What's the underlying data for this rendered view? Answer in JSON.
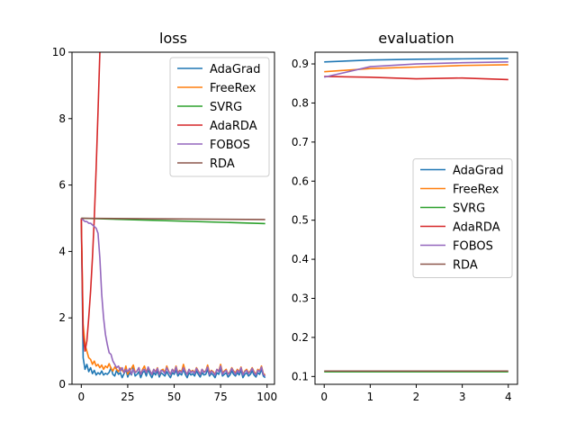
{
  "chart_data": [
    {
      "type": "line",
      "title": "loss",
      "xlabel": "",
      "ylabel": "",
      "xlim": [
        -5,
        104
      ],
      "ylim": [
        0,
        10
      ],
      "xticks": [
        0,
        25,
        50,
        75,
        100
      ],
      "yticks": [
        0,
        2,
        4,
        6,
        8,
        10
      ],
      "xtick_labels": [
        "0",
        "25",
        "50",
        "75",
        "100"
      ],
      "ytick_labels": [
        "0",
        "2",
        "4",
        "6",
        "8",
        "10"
      ],
      "legend": "top-right",
      "grid": false,
      "series": [
        {
          "name": "AdaGrad",
          "color": "#1f77b4",
          "x": [
            0,
            1,
            2,
            3,
            4,
            5,
            6,
            7,
            8,
            9,
            10,
            11,
            12,
            13,
            14,
            15,
            16,
            17,
            18,
            19,
            20,
            21,
            22,
            23,
            24,
            25,
            26,
            27,
            28,
            29,
            30,
            31,
            32,
            33,
            34,
            35,
            36,
            37,
            38,
            39,
            40,
            41,
            42,
            43,
            44,
            45,
            46,
            47,
            48,
            49,
            50,
            51,
            52,
            53,
            54,
            55,
            56,
            57,
            58,
            59,
            60,
            61,
            62,
            63,
            64,
            65,
            66,
            67,
            68,
            69,
            70,
            71,
            72,
            73,
            74,
            75,
            76,
            77,
            78,
            79,
            80,
            81,
            82,
            83,
            84,
            85,
            86,
            87,
            88,
            89,
            90,
            91,
            92,
            93,
            94,
            95,
            96,
            97,
            98,
            99
          ],
          "y": [
            5.0,
            0.8,
            0.45,
            0.6,
            0.38,
            0.5,
            0.32,
            0.42,
            0.28,
            0.35,
            0.3,
            0.4,
            0.28,
            0.33,
            0.3,
            0.36,
            0.5,
            0.3,
            0.25,
            0.42,
            0.3,
            0.35,
            0.2,
            0.32,
            0.45,
            0.22,
            0.35,
            0.28,
            0.5,
            0.25,
            0.3,
            0.38,
            0.2,
            0.35,
            0.4,
            0.25,
            0.45,
            0.3,
            0.2,
            0.35,
            0.28,
            0.4,
            0.22,
            0.35,
            0.3,
            0.25,
            0.38,
            0.28,
            0.2,
            0.35,
            0.3,
            0.42,
            0.25,
            0.33,
            0.28,
            0.45,
            0.3,
            0.2,
            0.35,
            0.28,
            0.32,
            0.25,
            0.4,
            0.3,
            0.22,
            0.35,
            0.28,
            0.3,
            0.45,
            0.25,
            0.33,
            0.28,
            0.2,
            0.35,
            0.3,
            0.48,
            0.25,
            0.3,
            0.35,
            0.22,
            0.28,
            0.4,
            0.3,
            0.25,
            0.35,
            0.28,
            0.42,
            0.2,
            0.3,
            0.35,
            0.25,
            0.3,
            0.4,
            0.28,
            0.22,
            0.35,
            0.3,
            0.45,
            0.25,
            0.2
          ]
        },
        {
          "name": "FreeRex",
          "color": "#ff7f0e",
          "x": [
            0,
            1,
            2,
            3,
            4,
            5,
            6,
            7,
            8,
            9,
            10,
            11,
            12,
            13,
            14,
            15,
            16,
            17,
            18,
            19,
            20,
            21,
            22,
            23,
            24,
            25,
            26,
            27,
            28,
            29,
            30,
            31,
            32,
            33,
            34,
            35,
            36,
            37,
            38,
            39,
            40,
            41,
            42,
            43,
            44,
            45,
            46,
            47,
            48,
            49,
            50,
            51,
            52,
            53,
            54,
            55,
            56,
            57,
            58,
            59,
            60,
            61,
            62,
            63,
            64,
            65,
            66,
            67,
            68,
            69,
            70,
            71,
            72,
            73,
            74,
            75,
            76,
            77,
            78,
            79,
            80,
            81,
            82,
            83,
            84,
            85,
            86,
            87,
            88,
            89,
            90,
            91,
            92,
            93,
            94,
            95,
            96,
            97,
            98,
            99
          ],
          "y": [
            5.0,
            1.8,
            1.2,
            1.0,
            0.8,
            0.75,
            0.6,
            0.7,
            0.55,
            0.6,
            0.5,
            0.58,
            0.45,
            0.55,
            0.5,
            0.62,
            0.48,
            0.4,
            0.52,
            0.45,
            0.38,
            0.5,
            0.42,
            0.35,
            0.55,
            0.3,
            0.4,
            0.48,
            0.58,
            0.35,
            0.4,
            0.5,
            0.3,
            0.45,
            0.55,
            0.35,
            0.5,
            0.4,
            0.3,
            0.45,
            0.38,
            0.5,
            0.3,
            0.42,
            0.45,
            0.35,
            0.55,
            0.4,
            0.3,
            0.45,
            0.38,
            0.55,
            0.35,
            0.42,
            0.38,
            0.6,
            0.4,
            0.3,
            0.45,
            0.38,
            0.42,
            0.35,
            0.5,
            0.4,
            0.3,
            0.45,
            0.38,
            0.4,
            0.58,
            0.35,
            0.42,
            0.38,
            0.3,
            0.45,
            0.4,
            0.6,
            0.35,
            0.4,
            0.45,
            0.3,
            0.38,
            0.5,
            0.4,
            0.35,
            0.45,
            0.38,
            0.52,
            0.3,
            0.4,
            0.45,
            0.35,
            0.4,
            0.5,
            0.38,
            0.3,
            0.45,
            0.4,
            0.55,
            0.32,
            0.28
          ]
        },
        {
          "name": "SVRG",
          "color": "#2ca02c",
          "x": [
            0,
            99
          ],
          "y": [
            5.0,
            4.84
          ]
        },
        {
          "name": "AdaRDA",
          "color": "#d62728",
          "x": [
            0,
            1,
            2,
            3,
            4,
            5,
            6,
            7,
            8,
            9,
            10,
            11
          ],
          "y": [
            5.0,
            1.5,
            1.0,
            1.3,
            2.0,
            2.8,
            3.8,
            5.0,
            6.5,
            8.2,
            10.0,
            12.0
          ]
        },
        {
          "name": "FOBOS",
          "color": "#9467bd",
          "x": [
            0,
            1,
            2,
            3,
            4,
            5,
            6,
            7,
            8,
            9,
            10,
            11,
            12,
            13,
            14,
            15,
            16,
            17,
            18,
            19,
            20,
            21,
            22,
            23,
            24,
            25,
            26,
            27,
            28,
            29,
            30,
            31,
            32,
            33,
            34,
            35,
            36,
            37,
            38,
            39,
            40,
            41,
            42,
            43,
            44,
            45,
            46,
            47,
            48,
            49,
            50,
            51,
            52,
            53,
            54,
            55,
            56,
            57,
            58,
            59,
            60,
            61,
            62,
            63,
            64,
            65,
            66,
            67,
            68,
            69,
            70,
            71,
            72,
            73,
            74,
            75,
            76,
            77,
            78,
            79,
            80,
            81,
            82,
            83,
            84,
            85,
            86,
            87,
            88,
            89,
            90,
            91,
            92,
            93,
            94,
            95,
            96,
            97,
            98,
            99
          ],
          "y": [
            5.0,
            4.95,
            4.9,
            4.9,
            4.85,
            4.85,
            4.8,
            4.75,
            4.7,
            4.55,
            3.8,
            2.7,
            2.0,
            1.5,
            1.2,
            0.95,
            0.9,
            0.7,
            0.6,
            0.5,
            0.55,
            0.4,
            0.5,
            0.35,
            0.45,
            0.38,
            0.48,
            0.3,
            0.45,
            0.35,
            0.4,
            0.5,
            0.3,
            0.42,
            0.45,
            0.35,
            0.52,
            0.4,
            0.3,
            0.45,
            0.35,
            0.48,
            0.3,
            0.42,
            0.4,
            0.32,
            0.5,
            0.38,
            0.3,
            0.45,
            0.35,
            0.52,
            0.32,
            0.4,
            0.35,
            0.5,
            0.38,
            0.3,
            0.45,
            0.35,
            0.4,
            0.32,
            0.48,
            0.38,
            0.3,
            0.45,
            0.35,
            0.4,
            0.52,
            0.3,
            0.4,
            0.35,
            0.28,
            0.45,
            0.38,
            0.55,
            0.3,
            0.38,
            0.42,
            0.3,
            0.35,
            0.48,
            0.38,
            0.3,
            0.42,
            0.35,
            0.5,
            0.28,
            0.38,
            0.42,
            0.32,
            0.38,
            0.48,
            0.35,
            0.28,
            0.42,
            0.38,
            0.52,
            0.3,
            0.25
          ]
        },
        {
          "name": "RDA",
          "color": "#8c564b",
          "x": [
            0,
            99
          ],
          "y": [
            5.0,
            4.96
          ]
        }
      ]
    },
    {
      "type": "line",
      "title": "evaluation",
      "xlabel": "",
      "ylabel": "",
      "xlim": [
        -0.2,
        4.2
      ],
      "ylim": [
        0.08,
        0.93
      ],
      "xticks": [
        0,
        1,
        2,
        3,
        4
      ],
      "yticks": [
        0.1,
        0.2,
        0.3,
        0.4,
        0.5,
        0.6,
        0.7,
        0.8,
        0.9
      ],
      "xtick_labels": [
        "0",
        "1",
        "2",
        "3",
        "4"
      ],
      "ytick_labels": [
        "0.1",
        "0.2",
        "0.3",
        "0.4",
        "0.5",
        "0.6",
        "0.7",
        "0.8",
        "0.9"
      ],
      "legend": "center-right",
      "grid": false,
      "series": [
        {
          "name": "AdaGrad",
          "color": "#1f77b4",
          "x": [
            0,
            1,
            2,
            3,
            4
          ],
          "y": [
            0.905,
            0.91,
            0.912,
            0.913,
            0.914
          ]
        },
        {
          "name": "FreeRex",
          "color": "#ff7f0e",
          "x": [
            0,
            1,
            2,
            3,
            4
          ],
          "y": [
            0.88,
            0.888,
            0.892,
            0.896,
            0.898
          ]
        },
        {
          "name": "SVRG",
          "color": "#2ca02c",
          "x": [
            0,
            1,
            2,
            3,
            4
          ],
          "y": [
            0.112,
            0.112,
            0.112,
            0.112,
            0.112
          ]
        },
        {
          "name": "AdaRDA",
          "color": "#d62728",
          "x": [
            0,
            1,
            2,
            3,
            4
          ],
          "y": [
            0.868,
            0.866,
            0.862,
            0.864,
            0.86
          ]
        },
        {
          "name": "FOBOS",
          "color": "#9467bd",
          "x": [
            0,
            1,
            2,
            3,
            4
          ],
          "y": [
            0.866,
            0.893,
            0.9,
            0.903,
            0.905
          ]
        },
        {
          "name": "RDA",
          "color": "#8c564b",
          "x": [
            0,
            1,
            2,
            3,
            4
          ],
          "y": [
            0.114,
            0.114,
            0.114,
            0.114,
            0.114
          ]
        }
      ]
    }
  ]
}
